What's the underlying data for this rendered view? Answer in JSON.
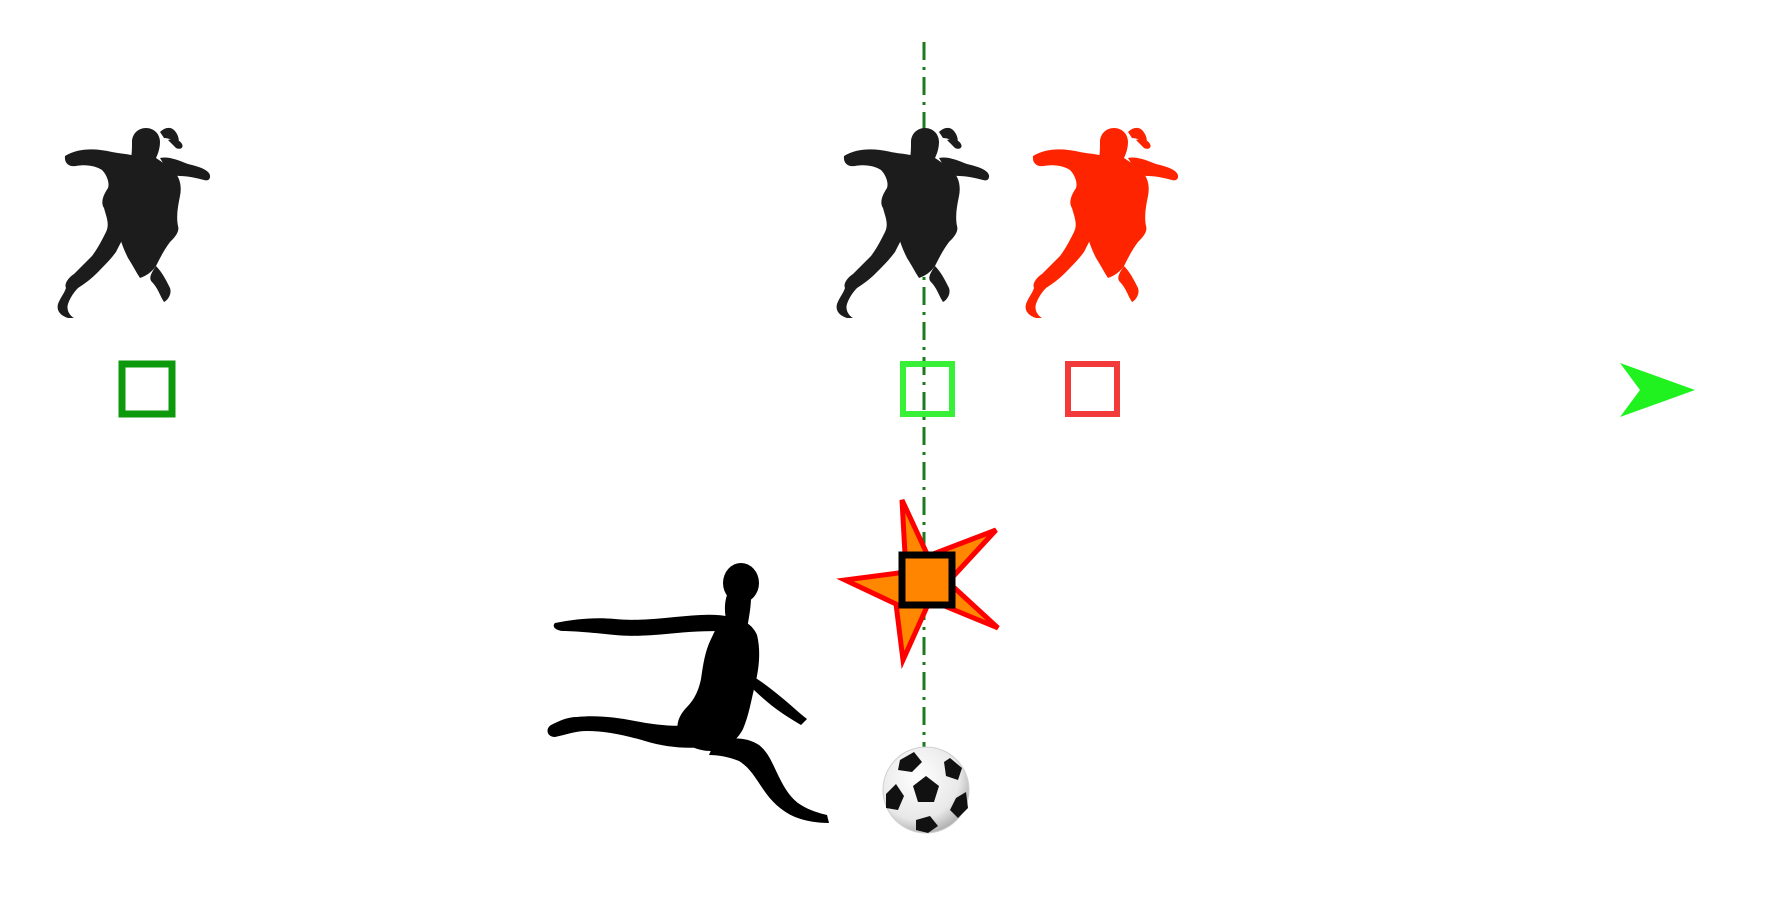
{
  "diagram": {
    "colors": {
      "timeline_start": "#0c9a0c",
      "timeline_end": "#1ff21f",
      "start_marker": "#0c9a0c",
      "aligned_marker": "#37f037",
      "late_marker": "#f23a3a",
      "late_player": "#ff2400",
      "player": "#1c1c1c",
      "kicker": "#000000",
      "guide_line": "#1e7a1e",
      "impact_outline": "#ff0000",
      "impact_fill": "#ff8800",
      "contact_square_fill": "#ff8400",
      "contact_square_stroke": "#000000"
    },
    "icons": {
      "jumper": "jumping-player-silhouette",
      "kicker": "kicking-player-silhouette",
      "ball": "soccer-ball-icon",
      "impact": "impact-star-icon"
    }
  }
}
